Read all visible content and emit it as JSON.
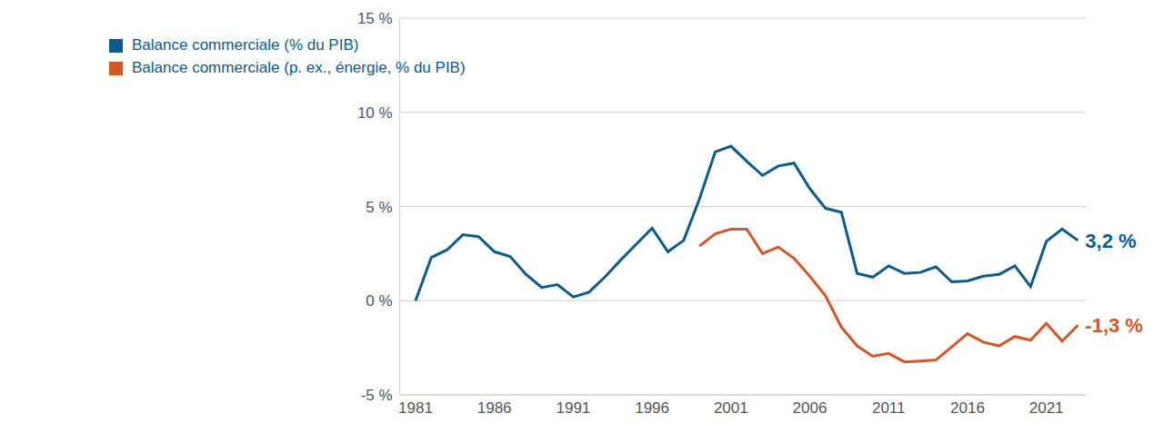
{
  "chart_data": {
    "type": "line",
    "x": [
      1981,
      1982,
      1983,
      1984,
      1985,
      1986,
      1987,
      1988,
      1989,
      1990,
      1991,
      1992,
      1993,
      1994,
      1995,
      1996,
      1997,
      1998,
      1999,
      2000,
      2001,
      2002,
      2003,
      2004,
      2005,
      2006,
      2007,
      2008,
      2009,
      2010,
      2011,
      2012,
      2013,
      2014,
      2015,
      2016,
      2017,
      2018,
      2019,
      2020,
      2021,
      2022,
      2023
    ],
    "series": [
      {
        "name": "Balance commerciale (% du PIB)",
        "color": "#0d5a8c",
        "values": [
          0,
          2.3,
          2.7,
          3.5,
          3.4,
          2.6,
          2.35,
          1.4,
          0.7,
          0.85,
          0.2,
          0.45,
          1.25,
          2.15,
          3.0,
          3.85,
          2.6,
          3.2,
          5.4,
          7.9,
          8.2,
          7.4,
          6.65,
          7.15,
          7.3,
          5.95,
          4.9,
          4.7,
          1.45,
          1.25,
          1.85,
          1.45,
          1.5,
          1.8,
          1.0,
          1.05,
          1.3,
          1.4,
          1.85,
          0.75,
          3.15,
          3.8,
          3.2
        ],
        "value_labels": [
          null,
          null,
          null,
          null,
          null,
          null,
          null,
          null,
          null,
          null,
          null,
          null,
          null,
          null,
          null,
          null,
          null,
          null,
          null,
          null,
          null,
          null,
          null,
          null,
          null,
          null,
          null,
          null,
          null,
          null,
          null,
          null,
          null,
          null,
          null,
          null,
          null,
          null,
          null,
          null,
          null,
          null,
          "3,2 %"
        ]
      },
      {
        "name": "Balance commerciale (p. ex., énergie, % du PIB)",
        "color": "#d2572a",
        "values": [
          null,
          null,
          null,
          null,
          null,
          null,
          null,
          null,
          null,
          null,
          null,
          null,
          null,
          null,
          null,
          null,
          null,
          null,
          2.9,
          3.55,
          3.8,
          3.8,
          2.5,
          2.85,
          2.25,
          1.3,
          0.25,
          -1.4,
          -2.4,
          -2.95,
          -2.8,
          -3.25,
          -3.2,
          -3.15,
          -2.45,
          -1.75,
          -2.2,
          -2.4,
          -1.9,
          -2.1,
          -1.2,
          -2.15,
          -1.3
        ],
        "value_labels": [
          null,
          null,
          null,
          null,
          null,
          null,
          null,
          null,
          null,
          null,
          null,
          null,
          null,
          null,
          null,
          null,
          null,
          null,
          null,
          null,
          null,
          null,
          null,
          null,
          null,
          null,
          null,
          null,
          null,
          null,
          null,
          null,
          null,
          null,
          null,
          null,
          null,
          null,
          null,
          null,
          null,
          null,
          "-1,3 %"
        ]
      }
    ],
    "xlim": [
      1980,
      2023.5
    ],
    "xticks": [
      1981,
      1986,
      1991,
      1996,
      2001,
      2006,
      2011,
      2016,
      2021
    ],
    "ylim": [
      -5,
      15
    ],
    "yticks": [
      {
        "value": -5,
        "label": "-5 %"
      },
      {
        "value": 0,
        "label": "0 %"
      },
      {
        "value": 5,
        "label": "5 %"
      },
      {
        "value": 10,
        "label": "10 %"
      },
      {
        "value": 15,
        "label": "15 %"
      }
    ],
    "grid": true,
    "legend": "top-left"
  }
}
